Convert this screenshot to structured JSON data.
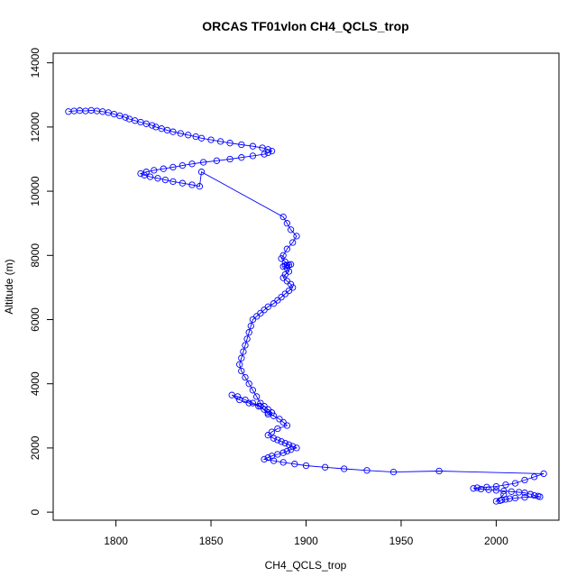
{
  "chart_data": {
    "type": "scatter",
    "title": "ORCAS TF01vlon CH4_QCLS_trop",
    "xlabel": "CH4_QCLS_trop",
    "ylabel": "Altitude (m)",
    "xlim": [
      1767,
      2033
    ],
    "ylim": [
      -250,
      14300
    ],
    "xticks": [
      1800,
      1850,
      1900,
      1950,
      2000
    ],
    "yticks": [
      0,
      2000,
      4000,
      6000,
      8000,
      10000,
      12000,
      14000
    ],
    "grid": false,
    "legend": "none",
    "marker": "open-circle",
    "connect_points": true,
    "color": "#0000ff",
    "series": [
      {
        "x": [
          1775,
          1778,
          1781,
          1784,
          1787,
          1790,
          1793,
          1796,
          1799,
          1802,
          1805,
          1807,
          1810,
          1813,
          1816,
          1819,
          1821,
          1824,
          1827,
          1830,
          1834,
          1838,
          1842,
          1845,
          1850,
          1855,
          1860,
          1866,
          1872,
          1877,
          1880,
          1882,
          1880,
          1878,
          1872,
          1866,
          1860,
          1853,
          1846,
          1840,
          1835,
          1830,
          1825,
          1820,
          1816,
          1813,
          1815,
          1818,
          1822,
          1826,
          1830,
          1835,
          1840,
          1844,
          1845,
          1888,
          1890,
          1892,
          1895,
          1893,
          1890,
          1888,
          1887,
          1889,
          1891,
          1888,
          1890,
          1892,
          1889,
          1890,
          1891,
          1889,
          1888,
          1890,
          1892,
          1893,
          1891,
          1889,
          1887,
          1885,
          1883,
          1880,
          1878,
          1876,
          1874,
          1872,
          1871,
          1870,
          1869,
          1868,
          1867,
          1866,
          1865,
          1866,
          1868,
          1870,
          1872,
          1874,
          1876,
          1878,
          1880,
          1882,
          1880,
          1876,
          1872,
          1868,
          1864,
          1861,
          1865,
          1870,
          1875,
          1878,
          1880,
          1883,
          1886,
          1888,
          1890,
          1885,
          1882,
          1880,
          1883,
          1885,
          1887,
          1889,
          1891,
          1893,
          1895,
          1892,
          1890,
          1888,
          1885,
          1882,
          1880,
          1878,
          1883,
          1888,
          1894,
          1900,
          1910,
          1920,
          1932,
          1946,
          1970,
          2025,
          2020,
          2015,
          2010,
          2005,
          2000,
          1995,
          1990,
          1988,
          1992,
          1996,
          2000,
          2004,
          2008,
          2012,
          2015,
          2018,
          2020,
          2022,
          2023,
          2015,
          2010,
          2007,
          2005,
          2003,
          2002,
          2000,
          2004
        ],
        "y": [
          12480,
          12500,
          12510,
          12500,
          12520,
          12500,
          12480,
          12450,
          12400,
          12350,
          12300,
          12250,
          12200,
          12150,
          12100,
          12050,
          12000,
          11950,
          11900,
          11850,
          11800,
          11750,
          11700,
          11650,
          11600,
          11550,
          11500,
          11450,
          11400,
          11350,
          11300,
          11250,
          11200,
          11150,
          11100,
          11050,
          11000,
          10950,
          10900,
          10850,
          10800,
          10750,
          10700,
          10650,
          10600,
          10550,
          10500,
          10450,
          10400,
          10350,
          10300,
          10250,
          10200,
          10150,
          10600,
          9200,
          9000,
          8800,
          8600,
          8400,
          8200,
          8000,
          7900,
          7800,
          7700,
          7650,
          7700,
          7720,
          7680,
          7600,
          7500,
          7400,
          7300,
          7200,
          7100,
          7000,
          6900,
          6800,
          6700,
          6600,
          6500,
          6400,
          6300,
          6200,
          6100,
          6000,
          5800,
          5600,
          5400,
          5200,
          5000,
          4800,
          4600,
          4400,
          4200,
          4000,
          3800,
          3600,
          3400,
          3300,
          3200,
          3100,
          3050,
          3300,
          3400,
          3500,
          3600,
          3650,
          3500,
          3400,
          3300,
          3200,
          3100,
          3000,
          2900,
          2800,
          2700,
          2600,
          2500,
          2400,
          2300,
          2250,
          2200,
          2150,
          2100,
          2050,
          2000,
          1950,
          1900,
          1850,
          1800,
          1750,
          1700,
          1650,
          1600,
          1550,
          1500,
          1450,
          1400,
          1350,
          1300,
          1250,
          1280,
          1200,
          1100,
          1000,
          900,
          850,
          800,
          780,
          760,
          740,
          720,
          700,
          680,
          660,
          640,
          620,
          600,
          560,
          520,
          500,
          480,
          460,
          440,
          420,
          400,
          380,
          360,
          340,
          550
        ]
      }
    ]
  }
}
